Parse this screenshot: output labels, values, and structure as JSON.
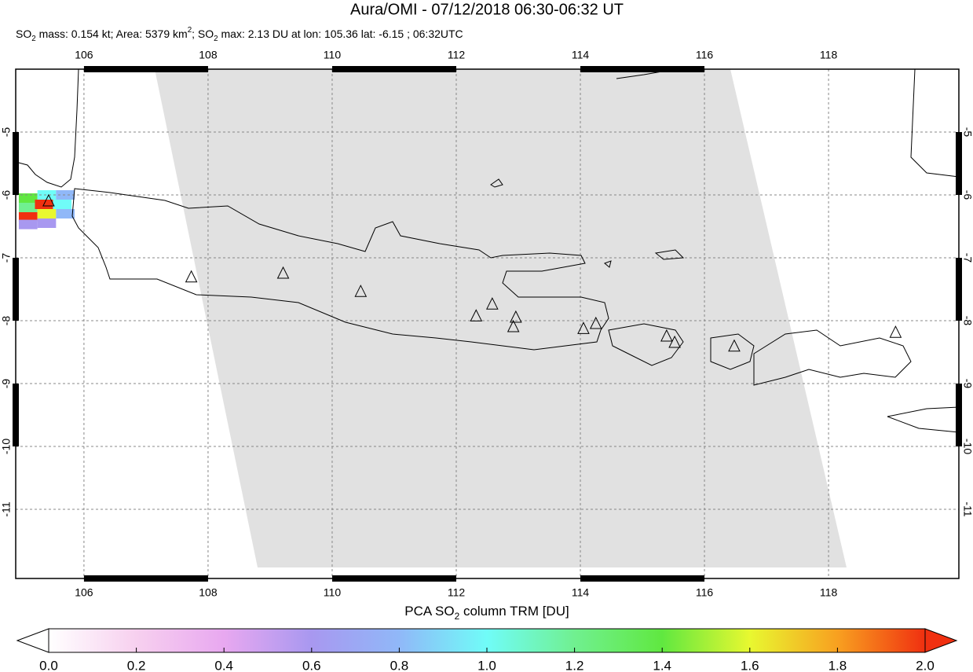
{
  "chart_data": {
    "type": "map",
    "title": "Aura/OMI - 07/12/2018 06:30-06:32 UT",
    "subtitle_parts": [
      "SO",
      "2",
      " mass: 0.154 kt; Area: 5379 km",
      "2",
      "; SO",
      "2",
      " max: 2.13 DU at lon: 105.36 lat: -6.15 ; 06:32UTC"
    ],
    "xlim": [
      104.9,
      120.1
    ],
    "ylim": [
      -12.1,
      -4.0
    ],
    "xticks": [
      106,
      108,
      110,
      112,
      114,
      116,
      118
    ],
    "yticks": [
      -5,
      -6,
      -7,
      -8,
      -9,
      -10,
      -11
    ],
    "grid": true,
    "so2_cells": {
      "x": [
        105.1,
        105.4,
        105.7,
        105.1,
        105.36,
        105.65,
        105.1,
        105.4,
        105.7,
        105.1,
        105.4
      ],
      "y": [
        -6.05,
        -6.0,
        -6.0,
        -6.2,
        -6.15,
        -6.15,
        -6.35,
        -6.3,
        -6.3,
        -6.47,
        -6.45
      ],
      "values": [
        1.3,
        1.0,
        0.8,
        1.2,
        2.13,
        0.9,
        1.9,
        1.6,
        0.7,
        0.6,
        0.5
      ]
    },
    "volcanoes": {
      "x": [
        107.73,
        109.21,
        110.46,
        112.32,
        112.58,
        112.96,
        112.92,
        114.05,
        114.25,
        115.39,
        115.52,
        116.48,
        119.08,
        105.43
      ],
      "y": [
        -7.31,
        -7.25,
        -7.54,
        -7.93,
        -7.74,
        -7.95,
        -8.1,
        -8.13,
        -8.05,
        -8.25,
        -8.35,
        -8.41,
        -8.19,
        -6.1
      ]
    },
    "colorbar": {
      "label_parts": [
        "PCA SO",
        "2",
        " column TRM [DU]"
      ],
      "lim": [
        0,
        2
      ],
      "ticks": [
        {
          "value": 0,
          "label": "0.0"
        },
        {
          "value": 0.2,
          "label": "0.2"
        },
        {
          "value": 0.4,
          "label": "0.4"
        },
        {
          "value": 0.6,
          "label": "0.6"
        },
        {
          "value": 0.8,
          "label": "0.8"
        },
        {
          "value": 1,
          "label": "1.0"
        },
        {
          "value": 1.2,
          "label": "1.2"
        },
        {
          "value": 1.4,
          "label": "1.4"
        },
        {
          "value": 1.6,
          "label": "1.6"
        },
        {
          "value": 1.8,
          "label": "1.8"
        },
        {
          "value": 2,
          "label": "2.0"
        }
      ],
      "colors": [
        "#ffffff",
        "#f7d0ef",
        "#e8a8f0",
        "#a898f0",
        "#90b8f8",
        "#70fcf8",
        "#70f090",
        "#60e840",
        "#e8f830",
        "#f8a020",
        "#f03010"
      ]
    }
  }
}
